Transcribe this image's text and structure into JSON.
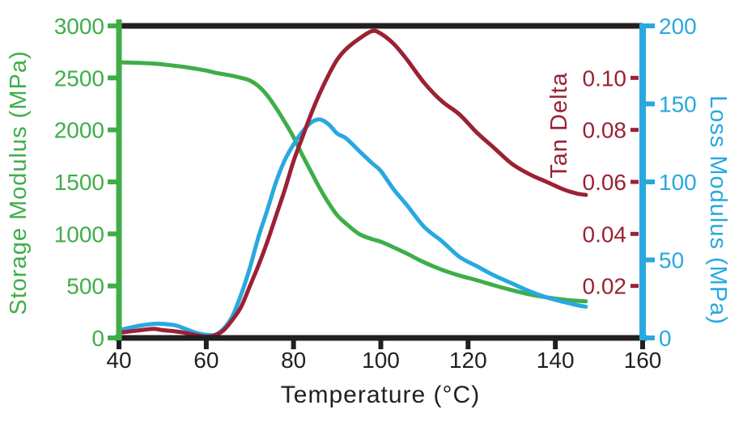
{
  "colors": {
    "green": "#3fae49",
    "blue": "#29a8e0",
    "red": "#9b2134",
    "black": "#231f20",
    "background": "#ffffff"
  },
  "chart_data": {
    "type": "line",
    "title": "",
    "xlabel": "Temperature (°C)",
    "xlim": [
      40,
      160
    ],
    "x_ticks": [
      40,
      60,
      80,
      100,
      120,
      140,
      160
    ],
    "grid": false,
    "legend": "none",
    "axes": {
      "storage": {
        "label": "Storage Modulus (MPa)",
        "side": "left",
        "color": "#3fae49",
        "range": [
          0,
          3000
        ],
        "ticks": [
          0,
          500,
          1000,
          1500,
          2000,
          2500,
          3000
        ]
      },
      "loss": {
        "label": "Loss Modulus (MPa)",
        "side": "right",
        "color": "#29a8e0",
        "range": [
          0,
          200
        ],
        "ticks": [
          0,
          50,
          100,
          150,
          200
        ]
      },
      "tan_delta": {
        "label": "Tan Delta",
        "side": "right-inner",
        "color": "#9b2134",
        "range": [
          0,
          0.12
        ],
        "ticks": [
          0.02,
          0.04,
          0.06,
          0.08,
          0.1
        ]
      }
    },
    "series": [
      {
        "name": "Storage Modulus",
        "axis": "storage",
        "color": "#3fae49",
        "x": [
          40,
          45,
          48,
          50,
          53,
          55,
          58,
          60,
          62,
          64,
          66,
          68,
          70,
          72,
          74,
          76,
          78,
          80,
          82,
          84,
          86,
          88,
          90,
          92,
          95,
          98,
          100,
          103,
          106,
          110,
          114,
          118,
          122,
          126,
          130,
          134,
          138,
          142,
          145,
          147
        ],
        "y": [
          2650,
          2643,
          2637,
          2630,
          2615,
          2605,
          2585,
          2570,
          2550,
          2535,
          2520,
          2500,
          2475,
          2420,
          2330,
          2210,
          2075,
          1930,
          1760,
          1600,
          1440,
          1300,
          1180,
          1100,
          1000,
          950,
          925,
          870,
          810,
          725,
          655,
          600,
          555,
          505,
          460,
          420,
          390,
          368,
          357,
          352
        ]
      },
      {
        "name": "Loss Modulus",
        "axis": "loss",
        "color": "#29a8e0",
        "x": [
          40,
          45,
          48,
          50,
          53,
          55,
          58,
          60,
          62,
          64,
          66,
          68,
          70,
          72,
          74,
          76,
          78,
          80,
          82,
          84,
          86,
          88,
          90,
          92,
          95,
          98,
          100,
          103,
          106,
          110,
          114,
          118,
          122,
          126,
          130,
          134,
          138,
          142,
          145,
          147
        ],
        "y": [
          5,
          8,
          9,
          9,
          8,
          6,
          3,
          2,
          2,
          6,
          14,
          28,
          45,
          65,
          82,
          100,
          114,
          124,
          132,
          138,
          140,
          137,
          131,
          128,
          120,
          112,
          107,
          95,
          85,
          71,
          62,
          52,
          46,
          40,
          35,
          30,
          26,
          23,
          21,
          20
        ]
      },
      {
        "name": "Tan Delta",
        "axis": "tan_delta",
        "color": "#9b2134",
        "x": [
          40,
          45,
          48,
          50,
          53,
          55,
          58,
          60,
          62,
          64,
          66,
          68,
          70,
          72,
          74,
          76,
          78,
          80,
          82,
          84,
          86,
          88,
          90,
          92,
          95,
          98,
          100,
          103,
          106,
          110,
          114,
          118,
          122,
          126,
          130,
          134,
          138,
          142,
          145,
          147
        ],
        "y": [
          0.002,
          0.003,
          0.0035,
          0.003,
          0.0025,
          0.002,
          0.001,
          0.0005,
          0.001,
          0.003,
          0.007,
          0.012,
          0.02,
          0.028,
          0.037,
          0.047,
          0.057,
          0.068,
          0.077,
          0.086,
          0.094,
          0.101,
          0.107,
          0.111,
          0.115,
          0.118,
          0.117,
          0.113,
          0.107,
          0.098,
          0.091,
          0.086,
          0.079,
          0.073,
          0.067,
          0.063,
          0.06,
          0.057,
          0.0555,
          0.055
        ]
      }
    ]
  }
}
